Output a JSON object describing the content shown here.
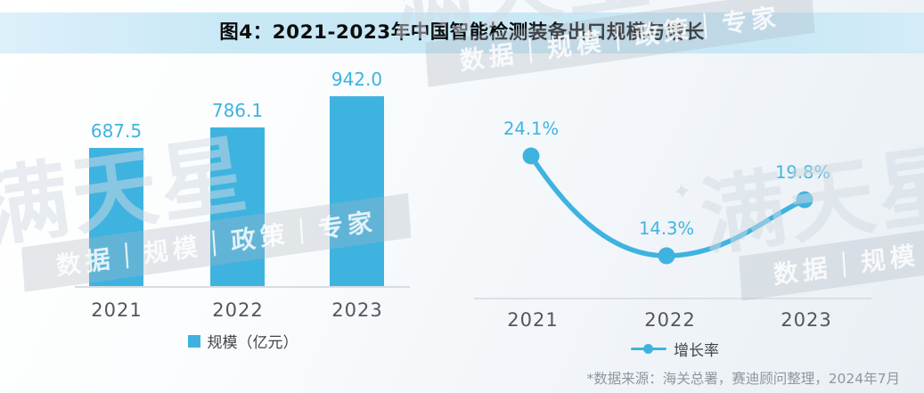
{
  "figure": {
    "title": "图4：2021-2023年中国智能检测装备出口规模与增长",
    "source_note": "*数据来源：海关总署，赛迪顾问整理，2024年7月"
  },
  "watermark": {
    "star": "✦",
    "brand": "满天星",
    "tagline": "数据｜规模｜政策｜专家"
  },
  "colors": {
    "accent": "#3FB3E0",
    "title_band": "#C9E8F6",
    "axis_text": "#53575C",
    "legend_text": "#414549",
    "source_text": "#8F969E",
    "baseline": "#D8DCE1",
    "title_text": "#0C0D0E"
  },
  "chart_data": [
    {
      "type": "bar",
      "name": "出口规模",
      "categories": [
        "2021",
        "2022",
        "2023"
      ],
      "values": [
        687.5,
        786.1,
        942.0
      ],
      "data_labels": [
        "687.5",
        "786.1",
        "942.0"
      ],
      "legend": "规模（亿元）",
      "ylabel": "亿元",
      "ylim": [
        0,
        942
      ],
      "grid": false,
      "legend_position": "bottom"
    },
    {
      "type": "line",
      "name": "出口增长率",
      "categories": [
        "2021",
        "2022",
        "2023"
      ],
      "values": [
        24.1,
        14.3,
        19.8
      ],
      "data_labels": [
        "24.1%",
        "14.3%",
        "19.8%"
      ],
      "legend": "增长率",
      "unit": "%",
      "grid": false,
      "legend_position": "bottom"
    }
  ]
}
